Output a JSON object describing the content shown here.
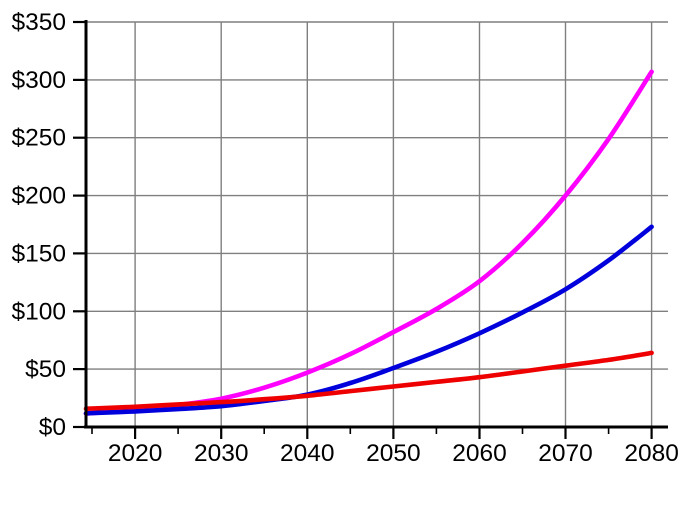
{
  "chart_data": {
    "type": "line",
    "title": "",
    "xlabel": "",
    "ylabel": "",
    "x": [
      2015,
      2020,
      2025,
      2030,
      2035,
      2040,
      2045,
      2050,
      2055,
      2060,
      2065,
      2070,
      2075,
      2080
    ],
    "series": [
      {
        "name": "magenta-line",
        "color": "#ff00ff",
        "values": [
          12,
          15,
          19,
          24.5,
          34,
          47,
          63,
          82,
          102,
          126,
          159,
          200,
          249,
          307
        ]
      },
      {
        "name": "blue-line",
        "color": "#0000dd",
        "values": [
          12,
          13.5,
          15.5,
          18,
          22.5,
          28,
          38,
          51,
          65,
          81,
          99,
          119,
          144,
          173
        ]
      },
      {
        "name": "red-line",
        "color": "#ee0000",
        "values": [
          16,
          17.5,
          19.5,
          21.5,
          24,
          27,
          31,
          35,
          39,
          43,
          48,
          53,
          58,
          64
        ]
      }
    ],
    "x_tick_labels": [
      "2020",
      "2030",
      "2040",
      "2050",
      "2060",
      "2070",
      "2080"
    ],
    "x_ticks_major": [
      2020,
      2030,
      2040,
      2050,
      2060,
      2070,
      2080
    ],
    "x_ticks_minor": [
      2015,
      2025,
      2035,
      2045,
      2055,
      2065,
      2075
    ],
    "y_tick_labels": [
      "$0",
      "$50",
      "$100",
      "$150",
      "$200",
      "$250",
      "$300",
      "$350"
    ],
    "y_ticks": [
      0,
      50,
      100,
      150,
      200,
      250,
      300,
      350
    ],
    "xlim": [
      2014.3,
      2081.9
    ],
    "ylim": [
      0,
      350
    ],
    "grid": true,
    "legend_position": "none",
    "colors": {
      "grid": "#7f7f7f",
      "axis": "#000000",
      "text": "#000000",
      "background": "#ffffff"
    }
  }
}
